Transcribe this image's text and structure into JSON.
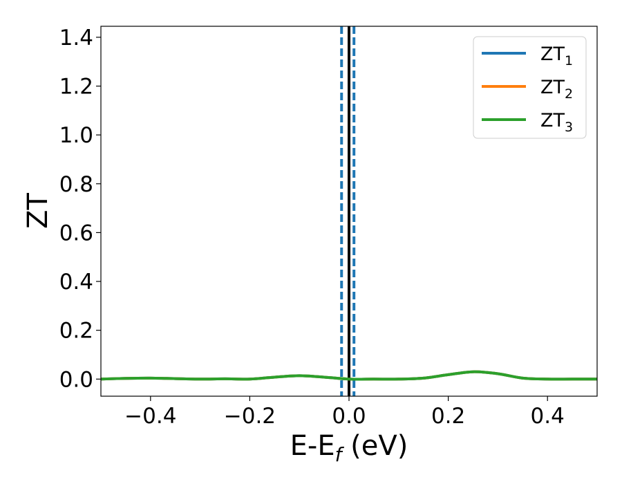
{
  "chart_data": {
    "type": "line",
    "title": "",
    "xlabel": {
      "main": "E-E",
      "sub": "f",
      "suffix": " (eV)"
    },
    "ylabel": "ZT",
    "xlim": [
      -0.5,
      0.5
    ],
    "ylim": [
      -0.07,
      1.445
    ],
    "xticks": [
      -0.4,
      -0.2,
      0.0,
      0.2,
      0.4
    ],
    "xtick_labels": [
      "−0.4",
      "−0.2",
      "0.0",
      "0.2",
      "0.4"
    ],
    "yticks": [
      0.0,
      0.2,
      0.4,
      0.6,
      0.8,
      1.0,
      1.2,
      1.4
    ],
    "ytick_labels": [
      "0.0",
      "0.2",
      "0.4",
      "0.6",
      "0.8",
      "1.0",
      "1.2",
      "1.4"
    ],
    "grid": false,
    "legend_position": "top-right",
    "vertical_lines": [
      {
        "x": 0.0,
        "style": "solid",
        "color": "#000000"
      },
      {
        "x": -0.015,
        "style": "dashed",
        "color": "#1f77b4"
      },
      {
        "x": 0.01,
        "style": "dashed",
        "color": "#1f77b4"
      }
    ],
    "series": [
      {
        "name": "ZT",
        "sub": "1",
        "color": "#1f77b4",
        "x": [
          -0.5,
          -0.45,
          -0.4,
          -0.35,
          -0.3,
          -0.25,
          -0.2,
          -0.15,
          -0.1,
          -0.05,
          0.0,
          0.05,
          0.1,
          0.15,
          0.2,
          0.25,
          0.3,
          0.35,
          0.4,
          0.45,
          0.5
        ],
        "y": [
          0.0,
          0.003,
          0.004,
          0.002,
          0.0,
          0.001,
          0.0,
          0.008,
          0.014,
          0.008,
          0.0,
          0.0,
          0.0,
          0.004,
          0.018,
          0.03,
          0.022,
          0.004,
          0.0,
          0.0,
          0.0
        ]
      },
      {
        "name": "ZT",
        "sub": "2",
        "color": "#ff7f0e",
        "x": [
          -0.5,
          -0.45,
          -0.4,
          -0.35,
          -0.3,
          -0.25,
          -0.2,
          -0.15,
          -0.1,
          -0.05,
          0.0,
          0.05,
          0.1,
          0.15,
          0.2,
          0.25,
          0.3,
          0.35,
          0.4,
          0.45,
          0.5
        ],
        "y": [
          0.0,
          0.003,
          0.004,
          0.002,
          0.0,
          0.001,
          0.0,
          0.008,
          0.014,
          0.008,
          0.0,
          0.0,
          0.0,
          0.004,
          0.018,
          0.03,
          0.022,
          0.004,
          0.0,
          0.0,
          0.0
        ]
      },
      {
        "name": "ZT",
        "sub": "3",
        "color": "#2ca02c",
        "x": [
          -0.5,
          -0.45,
          -0.4,
          -0.35,
          -0.3,
          -0.25,
          -0.2,
          -0.15,
          -0.1,
          -0.05,
          0.0,
          0.05,
          0.1,
          0.15,
          0.2,
          0.25,
          0.3,
          0.35,
          0.4,
          0.45,
          0.5
        ],
        "y": [
          0.0,
          0.003,
          0.004,
          0.002,
          0.0,
          0.001,
          0.0,
          0.008,
          0.014,
          0.008,
          0.0,
          0.0,
          0.0,
          0.004,
          0.018,
          0.03,
          0.022,
          0.004,
          0.0,
          0.0,
          0.0
        ]
      }
    ]
  }
}
